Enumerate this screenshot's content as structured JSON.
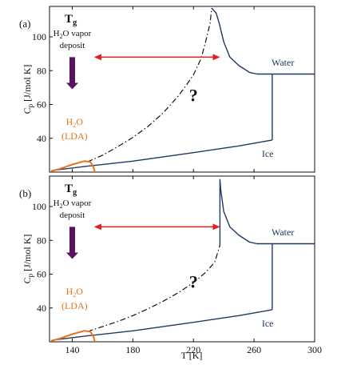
{
  "chart_data": [
    {
      "panel": "(a)",
      "type": "line",
      "xlabel": "T [K]",
      "ylabel": "Cp [J/mol K]",
      "xlim": [
        125,
        300
      ],
      "ylim": [
        20,
        118
      ],
      "xticks": [
        140,
        180,
        220,
        260,
        300
      ],
      "yticks": [
        40,
        60,
        80,
        100
      ],
      "x_tick_labels_shown": false,
      "grid": false,
      "annotations": {
        "tg_main": "T",
        "tg_sub": "g",
        "vapor_line1_pre": "H",
        "vapor_line1_sub": "2",
        "vapor_line1_post": "O vapor",
        "vapor_line2": "deposit",
        "lda_line1_pre": "H",
        "lda_line1_sub": "2",
        "lda_line1_post": "O",
        "lda_line2": "(LDA)",
        "question": "?",
        "water": "Water",
        "ice": "Ice"
      },
      "colors": {
        "solid": "#1f3864",
        "lda": "#e8731f",
        "arrow": "#e0201f",
        "down_arrow": "#5b1060",
        "dashdot": "#111111"
      },
      "series": [
        {
          "style": "solid",
          "color": "#1f3864",
          "points": [
            [
              127,
              21
            ],
            [
              150,
              23.5
            ],
            [
              180,
              26.5
            ],
            [
              220,
              31.5
            ],
            [
              250,
              35.5
            ],
            [
              272,
              39
            ]
          ]
        },
        {
          "style": "solid",
          "color": "#1f3864",
          "points": [
            [
              272,
              39
            ],
            [
              272,
              78
            ]
          ]
        },
        {
          "style": "solid",
          "color": "#1f3864",
          "points": [
            [
              272,
              78
            ],
            [
              300,
              78
            ]
          ]
        },
        {
          "style": "solid",
          "color": "#1f3864",
          "points": [
            [
              232,
              117
            ],
            [
              235,
              114
            ],
            [
              237,
              108
            ],
            [
              240,
              97
            ],
            [
              244,
              88
            ],
            [
              250,
              83
            ],
            [
              257,
              79
            ],
            [
              262,
              78
            ],
            [
              272,
              78
            ]
          ]
        },
        {
          "style": "dashdot",
          "color": "#111111",
          "points": [
            [
              150,
              26
            ],
            [
              160,
              30
            ],
            [
              170,
              35
            ],
            [
              180,
              40.5
            ],
            [
              190,
              47
            ],
            [
              200,
              55
            ],
            [
              210,
              65
            ],
            [
              215,
              71
            ],
            [
              220,
              77.5
            ],
            [
              225,
              87
            ],
            [
              228,
              97
            ],
            [
              231,
              108
            ],
            [
              232,
              117
            ]
          ]
        },
        {
          "style": "solid",
          "color": "#e8731f",
          "points": [
            [
              126,
              20.5
            ],
            [
              132,
              22
            ],
            [
              140,
              24.5
            ],
            [
              148,
              26.5
            ],
            [
              152,
              26
            ],
            [
              154,
              23
            ],
            [
              155,
              20
            ]
          ]
        }
      ],
      "arrows": [
        {
          "from": [
            155,
            88
          ],
          "to": [
            237,
            88
          ],
          "color": "#e0201f",
          "double": true
        },
        {
          "from": [
            140,
            88
          ],
          "to": [
            140,
            69
          ],
          "color": "#5b1060",
          "double": false
        }
      ]
    },
    {
      "panel": "(b)",
      "type": "line",
      "xlabel": "T [K]",
      "ylabel": "Cp [J/mol K]",
      "xlim": [
        125,
        300
      ],
      "ylim": [
        20,
        118
      ],
      "xticks": [
        140,
        180,
        220,
        260,
        300
      ],
      "yticks": [
        40,
        60,
        80,
        100
      ],
      "x_tick_labels_shown": true,
      "grid": false,
      "annotations": {
        "tg_main": "T",
        "tg_sub": "g",
        "vapor_line1_pre": "H",
        "vapor_line1_sub": "2",
        "vapor_line1_post": "O vapor",
        "vapor_line2": "deposit",
        "lda_line1_pre": "H",
        "lda_line1_sub": "2",
        "lda_line1_post": "O",
        "lda_line2": "(LDA)",
        "question": "?",
        "water": "Water",
        "ice": "Ice"
      },
      "colors": {
        "solid": "#1f3864",
        "lda": "#e8731f",
        "arrow": "#e0201f",
        "down_arrow": "#5b1060",
        "dashdot": "#111111"
      },
      "series": [
        {
          "style": "solid",
          "color": "#1f3864",
          "points": [
            [
              127,
              21
            ],
            [
              150,
              23.5
            ],
            [
              180,
              26.5
            ],
            [
              220,
              31.5
            ],
            [
              250,
              35.5
            ],
            [
              272,
              39
            ]
          ]
        },
        {
          "style": "solid",
          "color": "#1f3864",
          "points": [
            [
              272,
              39
            ],
            [
              272,
              78
            ]
          ]
        },
        {
          "style": "solid",
          "color": "#1f3864",
          "points": [
            [
              272,
              78
            ],
            [
              300,
              78
            ]
          ]
        },
        {
          "style": "solid",
          "color": "#1f3864",
          "points": [
            [
              237.5,
              77
            ],
            [
              237.5,
              116
            ],
            [
              238,
              110
            ],
            [
              240,
              97
            ],
            [
              244,
              88
            ],
            [
              250,
              83
            ],
            [
              257,
              79
            ],
            [
              262,
              78
            ],
            [
              272,
              78
            ]
          ]
        },
        {
          "style": "dashdot",
          "color": "#111111",
          "points": [
            [
              150,
              26
            ],
            [
              160,
              29
            ],
            [
              170,
              32
            ],
            [
              180,
              35.5
            ],
            [
              190,
              39.5
            ],
            [
              200,
              44
            ],
            [
              210,
              49
            ],
            [
              220,
              55
            ],
            [
              228,
              61
            ],
            [
              234,
              67
            ],
            [
              237.5,
              77
            ]
          ]
        },
        {
          "style": "solid",
          "color": "#e8731f",
          "points": [
            [
              126,
              20.5
            ],
            [
              132,
              22
            ],
            [
              140,
              24.5
            ],
            [
              148,
              26.5
            ],
            [
              152,
              26
            ],
            [
              154,
              23
            ],
            [
              155,
              20
            ]
          ]
        }
      ],
      "arrows": [
        {
          "from": [
            155,
            88
          ],
          "to": [
            237,
            88
          ],
          "color": "#e0201f",
          "double": true
        },
        {
          "from": [
            140,
            88
          ],
          "to": [
            140,
            69
          ],
          "color": "#5b1060",
          "double": false
        }
      ]
    }
  ],
  "shared": {
    "xlabel_main": "T [K]",
    "ylabel_main": "C",
    "ylabel_sub": "p",
    "ylabel_units": " [J/mol K]"
  }
}
